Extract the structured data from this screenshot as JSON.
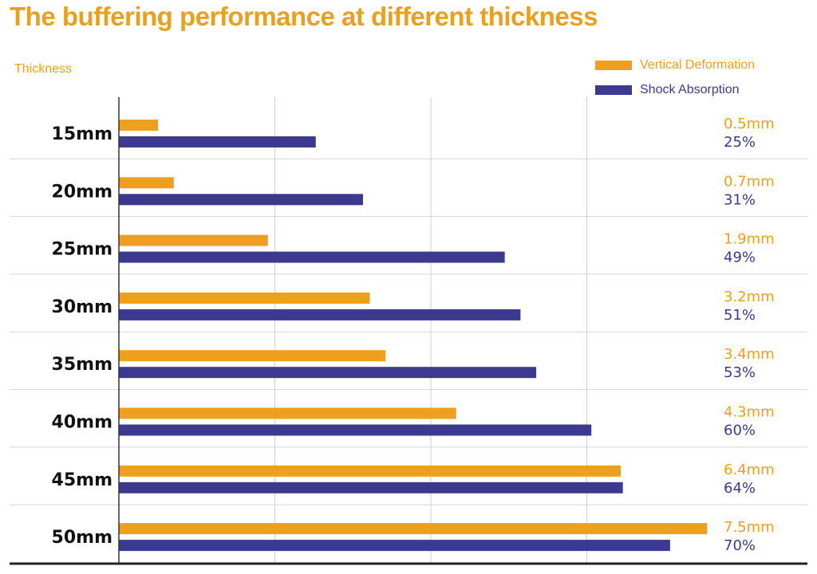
{
  "colors": {
    "title": "#E9A020",
    "vertical": "#EE9F1E",
    "shock": "#3B3A8E",
    "grid": "#CFCFCF",
    "row_line": "#D5D5D5",
    "axis": "#333333",
    "category": "#111111"
  },
  "chart_data": {
    "type": "bar",
    "orientation": "horizontal",
    "title": "The buffering performance at different thickness",
    "ylabel": "Thickness",
    "legend_position": "top-right",
    "categories": [
      "15mm",
      "20mm",
      "25mm",
      "30mm",
      "35mm",
      "40mm",
      "45mm",
      "50mm"
    ],
    "series": [
      {
        "name": "Vertical Deformation",
        "color": "#EE9F1E",
        "values": [
          0.5,
          0.7,
          1.9,
          3.2,
          3.4,
          4.3,
          6.4,
          7.5
        ],
        "labels": [
          "0.5mm",
          "0.7mm",
          "1.9mm",
          "3.2mm",
          "3.4mm",
          "4.3mm",
          "6.4mm",
          "7.5mm"
        ]
      },
      {
        "name": "Shock Absorption",
        "color": "#3B3A8E",
        "values": [
          25,
          31,
          49,
          51,
          53,
          60,
          64,
          70
        ],
        "labels": [
          "25%",
          "31%",
          "49%",
          "51%",
          "53%",
          "60%",
          "64%",
          "70%"
        ]
      }
    ],
    "grid": true
  }
}
